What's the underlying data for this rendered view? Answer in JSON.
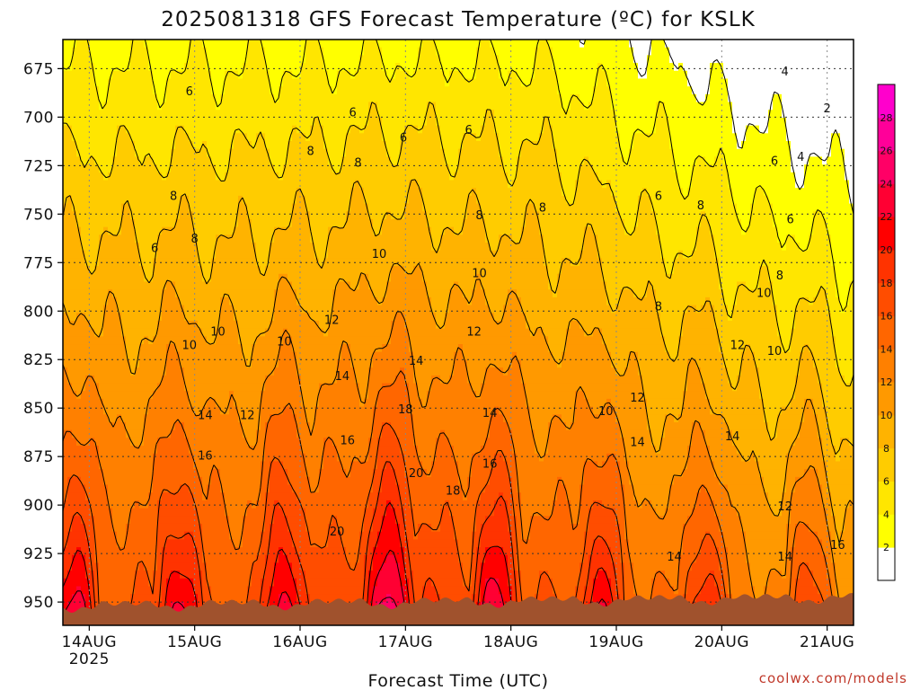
{
  "chart_data": {
    "type": "heatmap",
    "title": "2025081318 GFS Forecast Temperature (ºC) for KSLK",
    "xlabel": "Forecast Time (UTC)",
    "ylabel": "",
    "credit": "coolwx.com/models",
    "x_ticks": [
      {
        "day": 14,
        "label": "14AUG",
        "sublabel": "2025"
      },
      {
        "day": 15,
        "label": "15AUG",
        "sublabel": ""
      },
      {
        "day": 16,
        "label": "16AUG",
        "sublabel": ""
      },
      {
        "day": 17,
        "label": "17AUG",
        "sublabel": ""
      },
      {
        "day": 18,
        "label": "18AUG",
        "sublabel": ""
      },
      {
        "day": 19,
        "label": "19AUG",
        "sublabel": ""
      },
      {
        "day": 20,
        "label": "20AUG",
        "sublabel": ""
      },
      {
        "day": 21,
        "label": "21AUG",
        "sublabel": ""
      }
    ],
    "xlim": [
      13.75,
      21.25
    ],
    "y_ticks": [
      675,
      700,
      725,
      750,
      775,
      800,
      825,
      850,
      875,
      900,
      925,
      950
    ],
    "ylim": [
      660,
      962
    ],
    "colorbar": {
      "levels": [
        0,
        2,
        4,
        6,
        8,
        10,
        12,
        14,
        16,
        18,
        20,
        22,
        24,
        26,
        28,
        30
      ],
      "tick_labels": [
        "2",
        "4",
        "6",
        "8",
        "10",
        "12",
        "14",
        "16",
        "18",
        "20",
        "22",
        "24",
        "26",
        "28"
      ],
      "colors": [
        "#ffffff",
        "#ffff00",
        "#ffe600",
        "#ffcc00",
        "#ffb300",
        "#ff9900",
        "#ff8000",
        "#ff6600",
        "#ff4d00",
        "#ff3300",
        "#ff0000",
        "#ff0033",
        "#ff0066",
        "#ff0099",
        "#ff00cc"
      ]
    },
    "ground_color": "#a0522d",
    "contour_labels": [
      {
        "text": "6",
        "day": 14.95,
        "p": 687
      },
      {
        "text": "6",
        "day": 16.5,
        "p": 698
      },
      {
        "text": "6",
        "day": 16.98,
        "p": 711
      },
      {
        "text": "6",
        "day": 17.6,
        "p": 707
      },
      {
        "text": "4",
        "day": 20.6,
        "p": 677
      },
      {
        "text": "2",
        "day": 21.0,
        "p": 696
      },
      {
        "text": "4",
        "day": 20.75,
        "p": 721
      },
      {
        "text": "6",
        "day": 20.5,
        "p": 723
      },
      {
        "text": "6",
        "day": 19.4,
        "p": 741
      },
      {
        "text": "6",
        "day": 20.65,
        "p": 753
      },
      {
        "text": "8",
        "day": 14.8,
        "p": 741
      },
      {
        "text": "8",
        "day": 15.0,
        "p": 763
      },
      {
        "text": "6",
        "day": 14.62,
        "p": 768
      },
      {
        "text": "8",
        "day": 16.1,
        "p": 718
      },
      {
        "text": "8",
        "day": 16.55,
        "p": 724
      },
      {
        "text": "8",
        "day": 17.7,
        "p": 751
      },
      {
        "text": "8",
        "day": 18.3,
        "p": 747
      },
      {
        "text": "8",
        "day": 19.8,
        "p": 746
      },
      {
        "text": "10",
        "day": 16.75,
        "p": 771
      },
      {
        "text": "10",
        "day": 17.7,
        "p": 781
      },
      {
        "text": "8",
        "day": 20.55,
        "p": 782
      },
      {
        "text": "10",
        "day": 20.4,
        "p": 791
      },
      {
        "text": "8",
        "day": 19.4,
        "p": 798
      },
      {
        "text": "10",
        "day": 15.22,
        "p": 811
      },
      {
        "text": "10",
        "day": 15.85,
        "p": 816
      },
      {
        "text": "10",
        "day": 14.95,
        "p": 818
      },
      {
        "text": "12",
        "day": 16.3,
        "p": 805
      },
      {
        "text": "12",
        "day": 17.65,
        "p": 811
      },
      {
        "text": "12",
        "day": 20.15,
        "p": 818
      },
      {
        "text": "10",
        "day": 20.5,
        "p": 821
      },
      {
        "text": "14",
        "day": 16.4,
        "p": 834
      },
      {
        "text": "14",
        "day": 17.1,
        "p": 826
      },
      {
        "text": "12",
        "day": 15.5,
        "p": 854
      },
      {
        "text": "14",
        "day": 15.1,
        "p": 854
      },
      {
        "text": "18",
        "day": 17.0,
        "p": 851
      },
      {
        "text": "14",
        "day": 17.8,
        "p": 853
      },
      {
        "text": "10",
        "day": 18.9,
        "p": 852
      },
      {
        "text": "12",
        "day": 19.2,
        "p": 845
      },
      {
        "text": "16",
        "day": 15.1,
        "p": 875
      },
      {
        "text": "16",
        "day": 16.45,
        "p": 867
      },
      {
        "text": "14",
        "day": 20.1,
        "p": 865
      },
      {
        "text": "14",
        "day": 19.2,
        "p": 868
      },
      {
        "text": "20",
        "day": 17.1,
        "p": 884
      },
      {
        "text": "16",
        "day": 17.8,
        "p": 879
      },
      {
        "text": "18",
        "day": 17.45,
        "p": 893
      },
      {
        "text": "12",
        "day": 20.6,
        "p": 901
      },
      {
        "text": "20",
        "day": 16.35,
        "p": 914
      },
      {
        "text": "14",
        "day": 19.55,
        "p": 927
      },
      {
        "text": "14",
        "day": 20.6,
        "p": 927
      },
      {
        "text": "16",
        "day": 21.1,
        "p": 921
      }
    ]
  }
}
